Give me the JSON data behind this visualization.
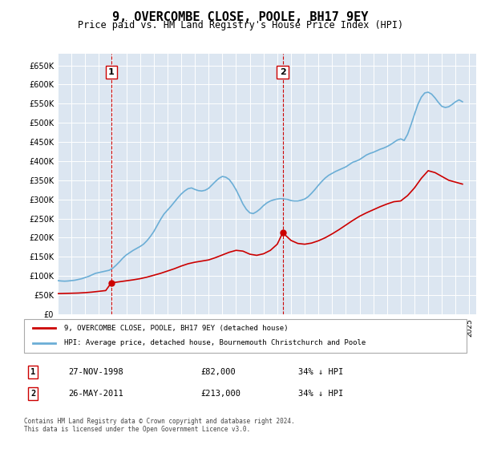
{
  "title": "9, OVERCOMBE CLOSE, POOLE, BH17 9EY",
  "subtitle": "Price paid vs. HM Land Registry's House Price Index (HPI)",
  "ylim": [
    0,
    680000
  ],
  "yticks": [
    0,
    50000,
    100000,
    150000,
    200000,
    250000,
    300000,
    350000,
    400000,
    450000,
    500000,
    550000,
    600000,
    650000
  ],
  "xlim_start": 1995.0,
  "xlim_end": 2025.5,
  "background_color": "#dce6f1",
  "plot_bg_color": "#dce6f1",
  "hpi_color": "#6baed6",
  "price_color": "#cc0000",
  "dashed_line_color": "#cc0000",
  "legend_label_red": "9, OVERCOMBE CLOSE, POOLE, BH17 9EY (detached house)",
  "legend_label_blue": "HPI: Average price, detached house, Bournemouth Christchurch and Poole",
  "sale1_label": "1",
  "sale1_date": "27-NOV-1998",
  "sale1_price": "£82,000",
  "sale1_note": "34% ↓ HPI",
  "sale1_x": 1998.9,
  "sale1_y": 82000,
  "sale2_label": "2",
  "sale2_date": "26-MAY-2011",
  "sale2_price": "£213,000",
  "sale2_note": "34% ↓ HPI",
  "sale2_x": 2011.4,
  "sale2_y": 213000,
  "footer": "Contains HM Land Registry data © Crown copyright and database right 2024.\nThis data is licensed under the Open Government Licence v3.0.",
  "hpi_data_x": [
    1995.0,
    1995.25,
    1995.5,
    1995.75,
    1996.0,
    1996.25,
    1996.5,
    1996.75,
    1997.0,
    1997.25,
    1997.5,
    1997.75,
    1998.0,
    1998.25,
    1998.5,
    1998.75,
    1999.0,
    1999.25,
    1999.5,
    1999.75,
    2000.0,
    2000.25,
    2000.5,
    2000.75,
    2001.0,
    2001.25,
    2001.5,
    2001.75,
    2002.0,
    2002.25,
    2002.5,
    2002.75,
    2003.0,
    2003.25,
    2003.5,
    2003.75,
    2004.0,
    2004.25,
    2004.5,
    2004.75,
    2005.0,
    2005.25,
    2005.5,
    2005.75,
    2006.0,
    2006.25,
    2006.5,
    2006.75,
    2007.0,
    2007.25,
    2007.5,
    2007.75,
    2008.0,
    2008.25,
    2008.5,
    2008.75,
    2009.0,
    2009.25,
    2009.5,
    2009.75,
    2010.0,
    2010.25,
    2010.5,
    2010.75,
    2011.0,
    2011.25,
    2011.5,
    2011.75,
    2012.0,
    2012.25,
    2012.5,
    2012.75,
    2013.0,
    2013.25,
    2013.5,
    2013.75,
    2014.0,
    2014.25,
    2014.5,
    2014.75,
    2015.0,
    2015.25,
    2015.5,
    2015.75,
    2016.0,
    2016.25,
    2016.5,
    2016.75,
    2017.0,
    2017.25,
    2017.5,
    2017.75,
    2018.0,
    2018.25,
    2018.5,
    2018.75,
    2019.0,
    2019.25,
    2019.5,
    2019.75,
    2020.0,
    2020.25,
    2020.5,
    2020.75,
    2021.0,
    2021.25,
    2021.5,
    2021.75,
    2022.0,
    2022.25,
    2022.5,
    2022.75,
    2023.0,
    2023.25,
    2023.5,
    2023.75,
    2024.0,
    2024.25,
    2024.5
  ],
  "hpi_data_y": [
    88000,
    87000,
    86500,
    87000,
    88000,
    89000,
    91000,
    93000,
    96000,
    99000,
    103000,
    107000,
    109000,
    111000,
    113000,
    115000,
    120000,
    128000,
    137000,
    147000,
    155000,
    161000,
    167000,
    172000,
    177000,
    183000,
    192000,
    203000,
    216000,
    232000,
    248000,
    262000,
    272000,
    282000,
    293000,
    304000,
    314000,
    322000,
    328000,
    330000,
    326000,
    323000,
    322000,
    324000,
    329000,
    338000,
    347000,
    355000,
    360000,
    358000,
    352000,
    340000,
    325000,
    307000,
    288000,
    274000,
    265000,
    263000,
    268000,
    275000,
    284000,
    291000,
    296000,
    299000,
    301000,
    302000,
    301000,
    300000,
    297000,
    296000,
    296000,
    298000,
    301000,
    307000,
    316000,
    326000,
    337000,
    347000,
    356000,
    363000,
    368000,
    373000,
    377000,
    381000,
    385000,
    391000,
    397000,
    400000,
    404000,
    410000,
    416000,
    420000,
    423000,
    427000,
    431000,
    434000,
    438000,
    443000,
    449000,
    455000,
    458000,
    454000,
    470000,
    495000,
    522000,
    548000,
    567000,
    578000,
    580000,
    575000,
    565000,
    553000,
    543000,
    540000,
    542000,
    548000,
    555000,
    560000,
    555000
  ],
  "price_data_x": [
    1995.0,
    1995.5,
    1996.0,
    1996.5,
    1997.0,
    1997.5,
    1998.0,
    1998.5,
    1998.9,
    1999.3,
    1999.7,
    2000.1,
    2000.5,
    2001.0,
    2001.5,
    2002.0,
    2002.5,
    2003.0,
    2003.5,
    2004.0,
    2004.5,
    2005.0,
    2005.5,
    2006.0,
    2006.5,
    2007.0,
    2007.5,
    2008.0,
    2008.5,
    2009.0,
    2009.5,
    2010.0,
    2010.5,
    2011.0,
    2011.4,
    2012.0,
    2012.5,
    2013.0,
    2013.5,
    2014.0,
    2014.5,
    2015.0,
    2015.5,
    2016.0,
    2016.5,
    2017.0,
    2017.5,
    2018.0,
    2018.5,
    2019.0,
    2019.5,
    2020.0,
    2020.5,
    2021.0,
    2021.5,
    2022.0,
    2022.5,
    2023.0,
    2023.5,
    2024.0,
    2024.5
  ],
  "price_data_y": [
    54000,
    54500,
    55000,
    55500,
    56500,
    58000,
    60000,
    62000,
    82000,
    84000,
    86000,
    88000,
    90000,
    93000,
    97000,
    102000,
    107000,
    113000,
    119000,
    126000,
    132000,
    136000,
    139000,
    142000,
    148000,
    155000,
    162000,
    167000,
    165000,
    157000,
    154000,
    158000,
    167000,
    183000,
    213000,
    193000,
    185000,
    183000,
    186000,
    192000,
    200000,
    210000,
    221000,
    233000,
    245000,
    256000,
    265000,
    273000,
    281000,
    288000,
    294000,
    296000,
    310000,
    330000,
    355000,
    375000,
    370000,
    360000,
    350000,
    345000,
    340000
  ]
}
